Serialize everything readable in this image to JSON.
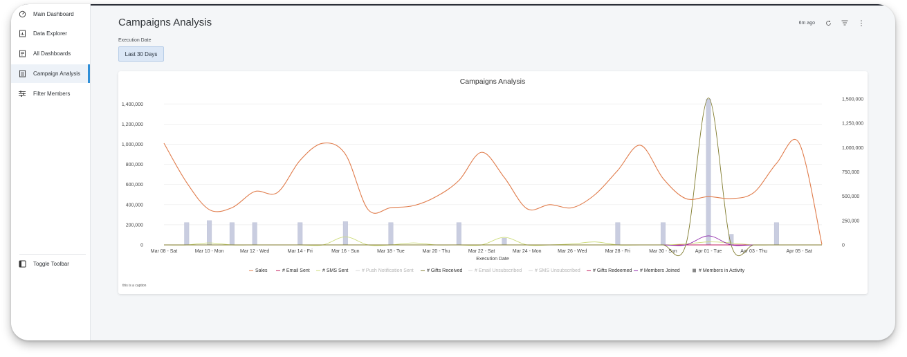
{
  "sidebar": {
    "items": [
      {
        "label": "Main Dashboard",
        "icon": "dashboard-gauge-icon"
      },
      {
        "label": "Data Explorer",
        "icon": "data-explorer-icon"
      },
      {
        "label": "All Dashboards",
        "icon": "dashboards-list-icon"
      },
      {
        "label": "Campaign Analysis",
        "icon": "report-icon",
        "active": true
      },
      {
        "label": "Filter Members",
        "icon": "sliders-icon"
      }
    ],
    "toggle_label": "Toggle Toolbar"
  },
  "header": {
    "title": "Campaigns Analysis",
    "updated": "6m ago"
  },
  "filter": {
    "label": "Execution Date",
    "value": "Last 30 Days"
  },
  "caption": "this is a caption",
  "colors": {
    "sales": "#e07b4a",
    "email_sent": "#c2185b",
    "sms_sent": "#cddc7a",
    "push_sent": "#d8d8d8",
    "gifts_received": "#7f7a2b",
    "email_unsub": "#d8d8d8",
    "sms_unsub": "#d8d8d8",
    "gifts_redeemed": "#c2185b",
    "members_joined": "#8e24aa",
    "members_activity": "#c9cde0",
    "active_accent": "#2f8fd8"
  },
  "chart_data": {
    "type": "line",
    "title": "Campaigns Analysis",
    "xlabel": "Execution Date",
    "ylabel": "",
    "x_ticks": [
      "Mar 08 - Sat",
      "Mar 10 - Mon",
      "Mar 12 - Wed",
      "Mar 14 - Fri",
      "Mar 16 - Sun",
      "Mar 18 - Tue",
      "Mar 20 - Thu",
      "Mar 22 - Sat",
      "Mar 24 - Mon",
      "Mar 26 - Wed",
      "Mar 28 - Fri",
      "Mar 30 - Sun",
      "Apr 01 - Tue",
      "Apr 03 - Thu",
      "Apr 05 - Sat"
    ],
    "x_index_range": [
      0,
      29
    ],
    "y_left": {
      "range": [
        0,
        1450000
      ],
      "ticks": [
        0,
        200000,
        400000,
        600000,
        800000,
        1000000,
        1200000,
        1400000
      ],
      "tick_labels": [
        "0",
        "200,000",
        "400,000",
        "600,000",
        "800,000",
        "1,000,000",
        "1,200,000",
        "1,400,000"
      ]
    },
    "y_right": {
      "range": [
        0,
        1500000
      ],
      "ticks": [
        0,
        250000,
        500000,
        750000,
        1000000,
        1250000,
        1500000
      ],
      "tick_labels": [
        "0",
        "250,000",
        "500,000",
        "750,000",
        "1,000,000",
        "1,250,000",
        "1,500,000"
      ]
    },
    "grid": true,
    "legend_position": "bottom",
    "series": [
      {
        "name": "Sales",
        "kind": "line",
        "axis": "left",
        "values": [
          1010000,
          620000,
          350000,
          370000,
          530000,
          520000,
          840000,
          1010000,
          900000,
          350000,
          370000,
          390000,
          480000,
          640000,
          920000,
          670000,
          360000,
          400000,
          370000,
          500000,
          740000,
          990000,
          660000,
          460000,
          480000,
          460000,
          520000,
          810000,
          1010000,
          5000
        ]
      },
      {
        "name": "# Email Sent",
        "kind": "line",
        "axis": "left",
        "values": [
          0,
          0,
          0,
          0,
          0,
          0,
          0,
          0,
          0,
          0,
          0,
          0,
          0,
          0,
          0,
          0,
          0,
          0,
          0,
          0,
          0,
          0,
          0,
          0,
          0,
          0,
          0,
          0,
          0,
          0
        ]
      },
      {
        "name": "# SMS Sent",
        "kind": "line",
        "axis": "left",
        "values": [
          0,
          0,
          20000,
          0,
          0,
          0,
          0,
          0,
          80000,
          0,
          0,
          20000,
          0,
          0,
          0,
          75000,
          0,
          0,
          10000,
          30000,
          0,
          0,
          0,
          10000,
          30000,
          20000,
          0,
          0,
          0,
          0
        ]
      },
      {
        "name": "# Push Notification Sent",
        "kind": "line",
        "axis": "left",
        "values": [
          0,
          0,
          0,
          0,
          0,
          0,
          0,
          0,
          0,
          0,
          0,
          0,
          0,
          0,
          0,
          0,
          0,
          0,
          0,
          0,
          0,
          0,
          0,
          0,
          0,
          0,
          0,
          0,
          0,
          0
        ]
      },
      {
        "name": "# Gifts Received",
        "kind": "line",
        "axis": "left",
        "values": [
          0,
          0,
          0,
          0,
          0,
          0,
          0,
          0,
          0,
          0,
          0,
          0,
          0,
          0,
          0,
          0,
          0,
          0,
          0,
          0,
          0,
          0,
          0,
          0,
          1460000,
          0,
          0,
          0,
          0,
          0
        ]
      },
      {
        "name": "# Email Unsubscribed",
        "kind": "line",
        "axis": "left",
        "values": [
          0,
          0,
          0,
          0,
          0,
          0,
          0,
          0,
          0,
          0,
          0,
          0,
          0,
          0,
          0,
          0,
          0,
          0,
          0,
          0,
          0,
          0,
          0,
          0,
          0,
          0,
          0,
          0,
          0,
          0
        ]
      },
      {
        "name": "# SMS Unsubscribed",
        "kind": "line",
        "axis": "left",
        "values": [
          0,
          0,
          0,
          0,
          0,
          0,
          0,
          0,
          0,
          0,
          0,
          0,
          0,
          0,
          0,
          0,
          0,
          0,
          0,
          0,
          0,
          0,
          0,
          0,
          0,
          0,
          0,
          0,
          0,
          0
        ]
      },
      {
        "name": "# Gifts Redeemed",
        "kind": "line",
        "axis": "left",
        "values": [
          0,
          0,
          0,
          0,
          0,
          0,
          0,
          0,
          0,
          0,
          0,
          0,
          0,
          0,
          0,
          0,
          0,
          0,
          0,
          0,
          0,
          0,
          0,
          0,
          0,
          0,
          0,
          0,
          0,
          0
        ]
      },
      {
        "name": "# Members Joined",
        "kind": "line",
        "axis": "left",
        "values": [
          0,
          0,
          0,
          0,
          0,
          0,
          0,
          0,
          0,
          0,
          0,
          0,
          0,
          0,
          0,
          0,
          0,
          0,
          0,
          0,
          0,
          0,
          0,
          0,
          90000,
          0,
          0,
          0,
          0,
          0
        ]
      },
      {
        "name": "# Members in Activity",
        "kind": "bar",
        "axis": "right",
        "values": [
          0,
          230000,
          250000,
          230000,
          230000,
          0,
          230000,
          0,
          240000,
          0,
          230000,
          0,
          0,
          230000,
          0,
          70000,
          0,
          0,
          0,
          0,
          230000,
          0,
          230000,
          0,
          1500000,
          110000,
          0,
          230000,
          0,
          0
        ]
      }
    ]
  }
}
